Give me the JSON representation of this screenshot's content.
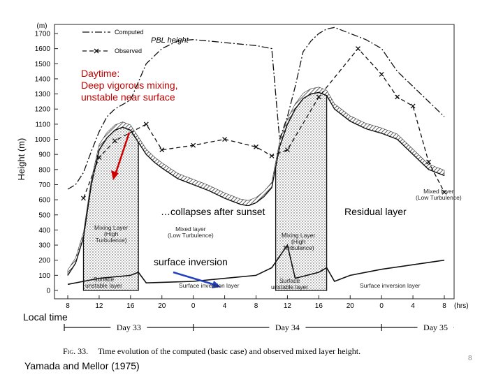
{
  "chart_data": {
    "type": "line",
    "ylabel": "Height (m)",
    "y_unit_label": "(m)",
    "x_unit_label": "(hrs)",
    "xlabel": "Local time",
    "ylim": [
      0,
      1800
    ],
    "y_ticks": [
      0,
      100,
      200,
      300,
      400,
      500,
      600,
      700,
      800,
      900,
      1000,
      1100,
      1200,
      1300,
      1400,
      1500,
      1600,
      1700
    ],
    "x_tick_hours": [
      8,
      12,
      16,
      20,
      24,
      28,
      32,
      36,
      40,
      44,
      48,
      52,
      56
    ],
    "x_tick_labels": [
      "8",
      "12",
      "16",
      "20",
      "0",
      "4",
      "8",
      "12",
      "16",
      "20",
      "0",
      "4",
      "8"
    ],
    "legend": {
      "placement": "top-left",
      "computed": "Computed",
      "observed": "Observed"
    },
    "series": [
      {
        "name": "Computed",
        "style": "dash-dot",
        "x": [
          8,
          9,
          10,
          11,
          12,
          13,
          14,
          15,
          16,
          17,
          18,
          20,
          22,
          24,
          26,
          28,
          30,
          32,
          34,
          35,
          36,
          37,
          38,
          39,
          40,
          41,
          42,
          44,
          46,
          48,
          50,
          52,
          54,
          56
        ],
        "y": [
          670,
          700,
          780,
          920,
          1050,
          1150,
          1200,
          1230,
          1260,
          1380,
          1500,
          1600,
          1650,
          1660,
          1650,
          1640,
          1630,
          1620,
          1600,
          1000,
          1150,
          1350,
          1580,
          1650,
          1700,
          1730,
          1740,
          1700,
          1660,
          1600,
          1450,
          1350,
          1250,
          1150
        ]
      },
      {
        "name": "Observed",
        "style": "dash-cross",
        "x": [
          10,
          12,
          14,
          18,
          20,
          24,
          28,
          32,
          34,
          36,
          40,
          45,
          48,
          50,
          52,
          54,
          56
        ],
        "y": [
          610,
          880,
          990,
          1100,
          930,
          960,
          1000,
          950,
          890,
          930,
          1280,
          1600,
          1430,
          1280,
          1220,
          850,
          650
        ]
      }
    ],
    "mixed_layer_top": {
      "x": [
        8,
        9,
        10,
        11,
        12,
        13,
        14,
        15,
        16,
        17,
        18,
        19,
        20,
        22,
        24,
        26,
        28,
        29,
        30,
        31,
        32,
        33,
        34,
        35,
        36,
        37,
        38,
        39,
        40,
        41,
        42,
        44,
        46,
        48,
        50,
        52,
        54,
        56
      ],
      "y": [
        100,
        180,
        350,
        700,
        930,
        1010,
        1060,
        1080,
        1060,
        980,
        900,
        850,
        810,
        740,
        700,
        660,
        610,
        590,
        570,
        560,
        580,
        620,
        680,
        950,
        1100,
        1200,
        1270,
        1300,
        1310,
        1290,
        1200,
        1120,
        1070,
        1040,
        1000,
        900,
        800,
        760
      ]
    },
    "surface_layer_top": {
      "x": [
        8,
        10,
        12,
        16,
        17,
        18,
        24,
        28,
        32,
        34,
        36,
        37,
        40,
        41,
        42,
        44,
        48,
        52,
        56
      ],
      "y": [
        40,
        60,
        80,
        100,
        120,
        50,
        60,
        80,
        100,
        150,
        300,
        80,
        120,
        150,
        60,
        100,
        140,
        170,
        200
      ]
    },
    "regions": {
      "day1_mixing": [
        "Mixing Layer",
        "(High",
        "Turbulence)"
      ],
      "night1_mixed": [
        "Mixed layer",
        "(Low Turbulence)"
      ],
      "day1_surface": [
        "Surface",
        "unstable layer"
      ],
      "night1_inversion": "Surface inversion layer",
      "day2_mixing": [
        "Mixing Layer",
        "(High",
        "Turbulence)"
      ],
      "night2_mixed": [
        "Mixed layer",
        "(Low Turbulence)"
      ],
      "day2_surface": [
        "Surface",
        "unstable layer"
      ],
      "night2_inversion": "Surface inversion layer"
    },
    "days": [
      "Day 33",
      "Day 34",
      "Day 35"
    ],
    "caption_fig": "Fig. 33.",
    "caption_text": "Time evolution of the computed (basic case) and observed mixed layer height."
  },
  "annotations": {
    "pbl_height": "PBL height",
    "daytime": [
      "Daytime:",
      "Deep vigorous mixing,",
      "unstable near surface"
    ],
    "collapses": "…collapses after sunset",
    "residual": "Residual layer",
    "surface_inversion": "surface inversion"
  },
  "citation": "Yamada and Mellor (1975)",
  "slide_number": "8"
}
